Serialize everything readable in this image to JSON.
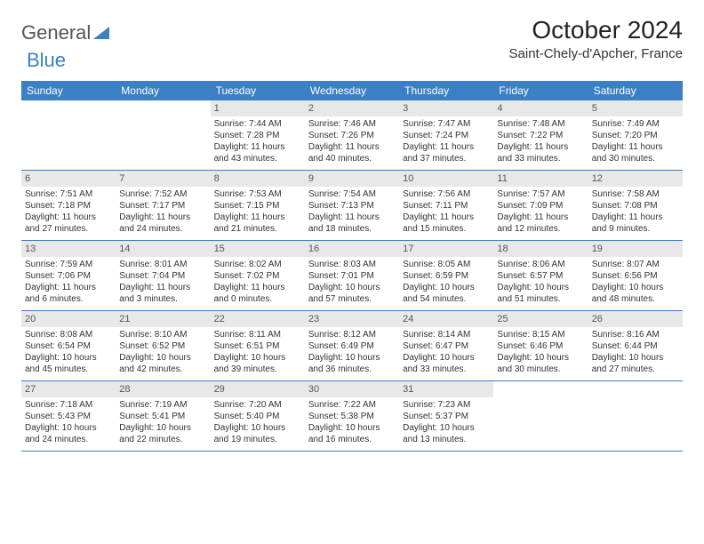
{
  "logo": {
    "part1": "General",
    "part2": "Blue"
  },
  "title": "October 2024",
  "location": "Saint-Chely-d'Apcher, France",
  "weekdays": [
    "Sunday",
    "Monday",
    "Tuesday",
    "Wednesday",
    "Thursday",
    "Friday",
    "Saturday"
  ],
  "colors": {
    "header_bg": "#3b7fc4",
    "header_text": "#ffffff",
    "daynum_bg": "#e8e8e8",
    "border": "#3b7fc4",
    "text": "#333333"
  },
  "font": {
    "family": "Arial",
    "weekday_size": 12,
    "daynum_size": 11,
    "body_size": 10,
    "title_size": 28,
    "location_size": 15
  },
  "layout": {
    "columns": 7,
    "rows": 5,
    "cell_min_height": 78
  },
  "weeks": [
    [
      {
        "n": "",
        "sunrise": "",
        "sunset": "",
        "daylight": ""
      },
      {
        "n": "",
        "sunrise": "",
        "sunset": "",
        "daylight": ""
      },
      {
        "n": "1",
        "sunrise": "Sunrise: 7:44 AM",
        "sunset": "Sunset: 7:28 PM",
        "daylight": "Daylight: 11 hours and 43 minutes."
      },
      {
        "n": "2",
        "sunrise": "Sunrise: 7:46 AM",
        "sunset": "Sunset: 7:26 PM",
        "daylight": "Daylight: 11 hours and 40 minutes."
      },
      {
        "n": "3",
        "sunrise": "Sunrise: 7:47 AM",
        "sunset": "Sunset: 7:24 PM",
        "daylight": "Daylight: 11 hours and 37 minutes."
      },
      {
        "n": "4",
        "sunrise": "Sunrise: 7:48 AM",
        "sunset": "Sunset: 7:22 PM",
        "daylight": "Daylight: 11 hours and 33 minutes."
      },
      {
        "n": "5",
        "sunrise": "Sunrise: 7:49 AM",
        "sunset": "Sunset: 7:20 PM",
        "daylight": "Daylight: 11 hours and 30 minutes."
      }
    ],
    [
      {
        "n": "6",
        "sunrise": "Sunrise: 7:51 AM",
        "sunset": "Sunset: 7:18 PM",
        "daylight": "Daylight: 11 hours and 27 minutes."
      },
      {
        "n": "7",
        "sunrise": "Sunrise: 7:52 AM",
        "sunset": "Sunset: 7:17 PM",
        "daylight": "Daylight: 11 hours and 24 minutes."
      },
      {
        "n": "8",
        "sunrise": "Sunrise: 7:53 AM",
        "sunset": "Sunset: 7:15 PM",
        "daylight": "Daylight: 11 hours and 21 minutes."
      },
      {
        "n": "9",
        "sunrise": "Sunrise: 7:54 AM",
        "sunset": "Sunset: 7:13 PM",
        "daylight": "Daylight: 11 hours and 18 minutes."
      },
      {
        "n": "10",
        "sunrise": "Sunrise: 7:56 AM",
        "sunset": "Sunset: 7:11 PM",
        "daylight": "Daylight: 11 hours and 15 minutes."
      },
      {
        "n": "11",
        "sunrise": "Sunrise: 7:57 AM",
        "sunset": "Sunset: 7:09 PM",
        "daylight": "Daylight: 11 hours and 12 minutes."
      },
      {
        "n": "12",
        "sunrise": "Sunrise: 7:58 AM",
        "sunset": "Sunset: 7:08 PM",
        "daylight": "Daylight: 11 hours and 9 minutes."
      }
    ],
    [
      {
        "n": "13",
        "sunrise": "Sunrise: 7:59 AM",
        "sunset": "Sunset: 7:06 PM",
        "daylight": "Daylight: 11 hours and 6 minutes."
      },
      {
        "n": "14",
        "sunrise": "Sunrise: 8:01 AM",
        "sunset": "Sunset: 7:04 PM",
        "daylight": "Daylight: 11 hours and 3 minutes."
      },
      {
        "n": "15",
        "sunrise": "Sunrise: 8:02 AM",
        "sunset": "Sunset: 7:02 PM",
        "daylight": "Daylight: 11 hours and 0 minutes."
      },
      {
        "n": "16",
        "sunrise": "Sunrise: 8:03 AM",
        "sunset": "Sunset: 7:01 PM",
        "daylight": "Daylight: 10 hours and 57 minutes."
      },
      {
        "n": "17",
        "sunrise": "Sunrise: 8:05 AM",
        "sunset": "Sunset: 6:59 PM",
        "daylight": "Daylight: 10 hours and 54 minutes."
      },
      {
        "n": "18",
        "sunrise": "Sunrise: 8:06 AM",
        "sunset": "Sunset: 6:57 PM",
        "daylight": "Daylight: 10 hours and 51 minutes."
      },
      {
        "n": "19",
        "sunrise": "Sunrise: 8:07 AM",
        "sunset": "Sunset: 6:56 PM",
        "daylight": "Daylight: 10 hours and 48 minutes."
      }
    ],
    [
      {
        "n": "20",
        "sunrise": "Sunrise: 8:08 AM",
        "sunset": "Sunset: 6:54 PM",
        "daylight": "Daylight: 10 hours and 45 minutes."
      },
      {
        "n": "21",
        "sunrise": "Sunrise: 8:10 AM",
        "sunset": "Sunset: 6:52 PM",
        "daylight": "Daylight: 10 hours and 42 minutes."
      },
      {
        "n": "22",
        "sunrise": "Sunrise: 8:11 AM",
        "sunset": "Sunset: 6:51 PM",
        "daylight": "Daylight: 10 hours and 39 minutes."
      },
      {
        "n": "23",
        "sunrise": "Sunrise: 8:12 AM",
        "sunset": "Sunset: 6:49 PM",
        "daylight": "Daylight: 10 hours and 36 minutes."
      },
      {
        "n": "24",
        "sunrise": "Sunrise: 8:14 AM",
        "sunset": "Sunset: 6:47 PM",
        "daylight": "Daylight: 10 hours and 33 minutes."
      },
      {
        "n": "25",
        "sunrise": "Sunrise: 8:15 AM",
        "sunset": "Sunset: 6:46 PM",
        "daylight": "Daylight: 10 hours and 30 minutes."
      },
      {
        "n": "26",
        "sunrise": "Sunrise: 8:16 AM",
        "sunset": "Sunset: 6:44 PM",
        "daylight": "Daylight: 10 hours and 27 minutes."
      }
    ],
    [
      {
        "n": "27",
        "sunrise": "Sunrise: 7:18 AM",
        "sunset": "Sunset: 5:43 PM",
        "daylight": "Daylight: 10 hours and 24 minutes."
      },
      {
        "n": "28",
        "sunrise": "Sunrise: 7:19 AM",
        "sunset": "Sunset: 5:41 PM",
        "daylight": "Daylight: 10 hours and 22 minutes."
      },
      {
        "n": "29",
        "sunrise": "Sunrise: 7:20 AM",
        "sunset": "Sunset: 5:40 PM",
        "daylight": "Daylight: 10 hours and 19 minutes."
      },
      {
        "n": "30",
        "sunrise": "Sunrise: 7:22 AM",
        "sunset": "Sunset: 5:38 PM",
        "daylight": "Daylight: 10 hours and 16 minutes."
      },
      {
        "n": "31",
        "sunrise": "Sunrise: 7:23 AM",
        "sunset": "Sunset: 5:37 PM",
        "daylight": "Daylight: 10 hours and 13 minutes."
      },
      {
        "n": "",
        "sunrise": "",
        "sunset": "",
        "daylight": ""
      },
      {
        "n": "",
        "sunrise": "",
        "sunset": "",
        "daylight": ""
      }
    ]
  ]
}
